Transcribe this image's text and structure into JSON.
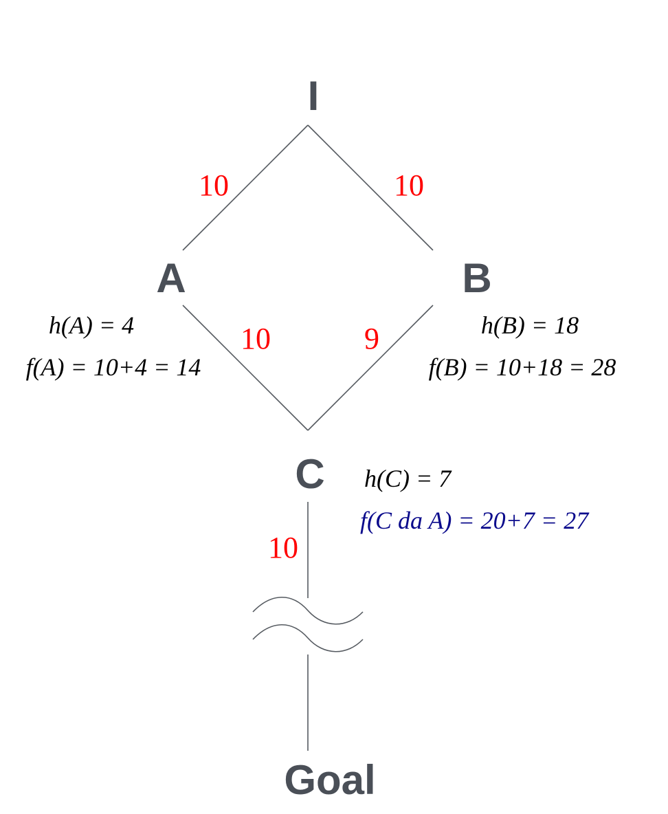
{
  "colors": {
    "node": "#4a4f57",
    "edge": "#555a60",
    "cost": "#ff0000",
    "heuristic": "#000000",
    "highlight": "#0b0b8c"
  },
  "nodes": {
    "I": {
      "label": "I"
    },
    "A": {
      "label": "A"
    },
    "B": {
      "label": "B"
    },
    "C": {
      "label": "C"
    },
    "goal": {
      "label": "Goal"
    }
  },
  "edges": {
    "I_A": {
      "cost": "10"
    },
    "I_B": {
      "cost": "10"
    },
    "A_C": {
      "cost": "10"
    },
    "B_C": {
      "cost": "9"
    },
    "C_goal": {
      "cost": "10"
    }
  },
  "annotations": {
    "hA": "h(A) = 4",
    "fA": "f(A) = 10+4 = 14",
    "hB": "h(B) = 18",
    "fB": "f(B) = 10+18 = 28",
    "hC": "h(C) = 7",
    "fC": "f(C da A) = 20+7 = 27"
  }
}
